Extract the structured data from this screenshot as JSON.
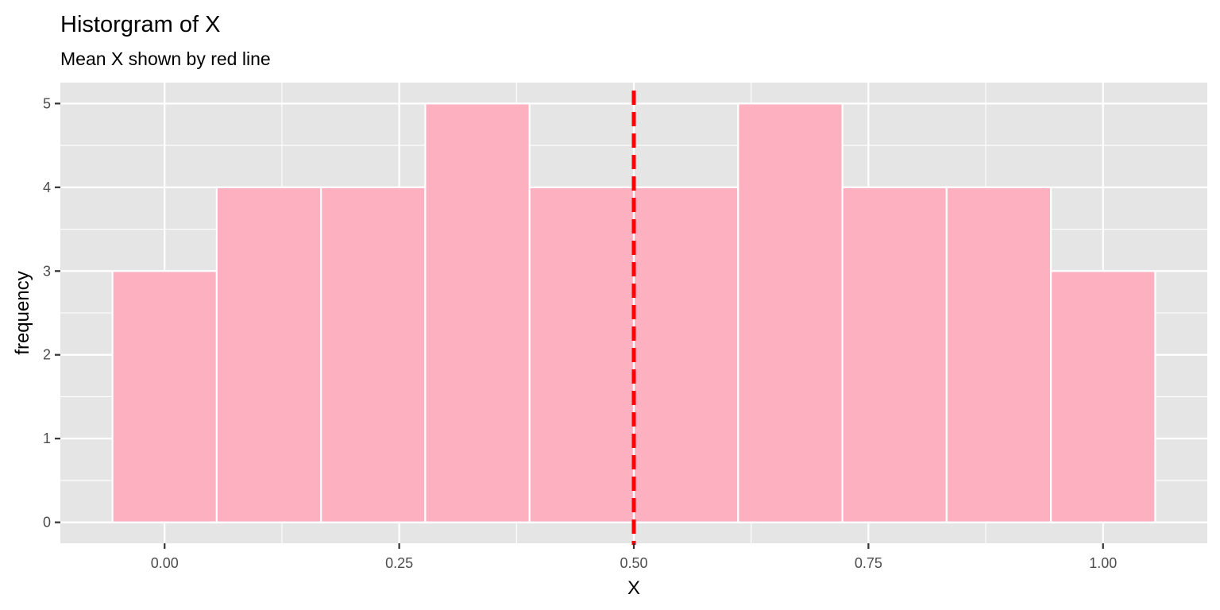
{
  "chart_data": {
    "type": "bar",
    "title": "Historgram of X",
    "subtitle": "Mean X shown by red line",
    "xlabel": "X",
    "ylabel": "frequency",
    "xlim": [
      -0.1111,
      1.1111
    ],
    "ylim": [
      -0.25,
      5.25
    ],
    "x_ticks": [
      0.0,
      0.25,
      0.5,
      0.75,
      1.0
    ],
    "x_tick_labels": [
      "0.00",
      "0.25",
      "0.50",
      "0.75",
      "1.00"
    ],
    "y_ticks": [
      0,
      1,
      2,
      3,
      4,
      5
    ],
    "y_tick_labels": [
      "0",
      "1",
      "2",
      "3",
      "4",
      "5"
    ],
    "grid": true,
    "legend": "none",
    "bins": [
      {
        "center": 0.0,
        "count": 3
      },
      {
        "center": 0.1111,
        "count": 4
      },
      {
        "center": 0.2222,
        "count": 4
      },
      {
        "center": 0.3333,
        "count": 5
      },
      {
        "center": 0.4444,
        "count": 4
      },
      {
        "center": 0.5556,
        "count": 4
      },
      {
        "center": 0.6667,
        "count": 5
      },
      {
        "center": 0.7778,
        "count": 4
      },
      {
        "center": 0.8889,
        "count": 4
      },
      {
        "center": 1.0,
        "count": 3
      }
    ],
    "bin_width": 0.1111,
    "mean_x": 0.5,
    "colors": {
      "bar_fill": "#fdb0c0",
      "bar_outline": "#ffffff",
      "mean_line": "#ff0000",
      "panel": "#e5e5e5"
    }
  }
}
